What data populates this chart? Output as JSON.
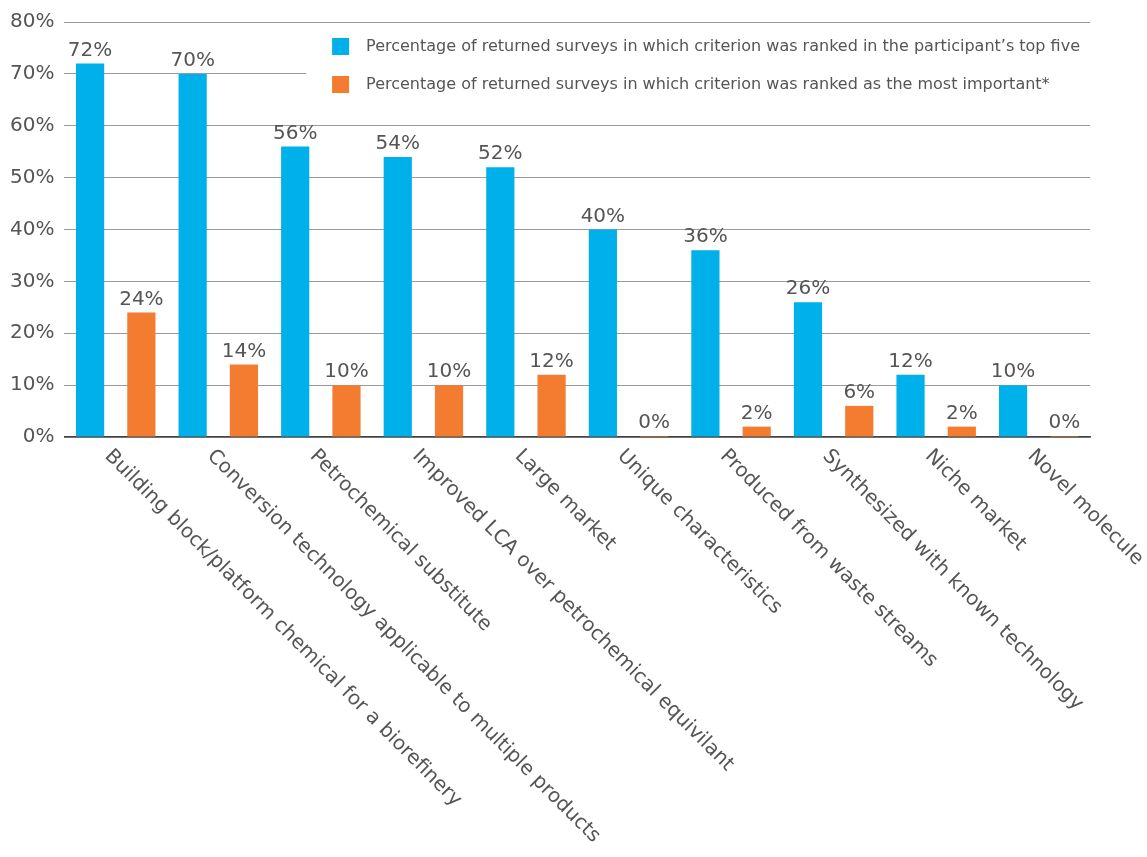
{
  "chart_data": {
    "type": "bar",
    "categories": [
      "Building block/platform chemical for a biorefinery",
      "Conversion technology applicable to multiple products",
      "Petrochemical substitute",
      "Improved LCA over petrochemical equivilant",
      "Large market",
      "Unique characteristics",
      "Produced from waste streams",
      "Synthesized with known technology",
      "Niche market",
      "Novel molecule"
    ],
    "series": [
      {
        "name": "Percentage of returned surveys in which criterion was ranked in the participant’s top five",
        "color": "#00b0ea",
        "values": [
          72,
          70,
          56,
          54,
          52,
          40,
          36,
          26,
          12,
          10
        ],
        "value_labels": [
          "72%",
          "70%",
          "56%",
          "54%",
          "52%",
          "40%",
          "36%",
          "26%",
          "12%",
          "10%"
        ]
      },
      {
        "name": "Percentage of returned surveys in which criterion was ranked as the most important*",
        "color": "#f47c30",
        "values": [
          24,
          14,
          10,
          10,
          12,
          0,
          2,
          6,
          2,
          0
        ],
        "value_labels": [
          "24%",
          "14%",
          "10%",
          "10%",
          "12%",
          "0%",
          "2%",
          "6%",
          "2%",
          "0%"
        ]
      }
    ],
    "ylim": [
      0,
      80
    ],
    "yticks": [
      {
        "value": 0,
        "label": "0%"
      },
      {
        "value": 10,
        "label": "10%"
      },
      {
        "value": 20,
        "label": "20%"
      },
      {
        "value": 30,
        "label": "30%"
      },
      {
        "value": 40,
        "label": "40%"
      },
      {
        "value": 50,
        "label": "50%"
      },
      {
        "value": 60,
        "label": "60%"
      },
      {
        "value": 70,
        "label": "70%"
      },
      {
        "value": 80,
        "label": "80%"
      }
    ],
    "grid": "y",
    "legend": "top right"
  }
}
